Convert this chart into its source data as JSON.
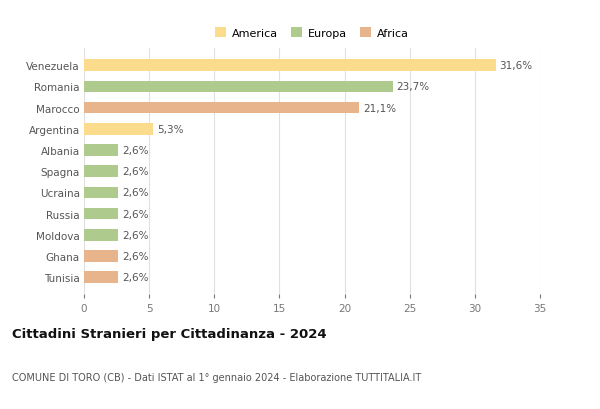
{
  "countries": [
    "Venezuela",
    "Romania",
    "Marocco",
    "Argentina",
    "Albania",
    "Spagna",
    "Ucraina",
    "Russia",
    "Moldova",
    "Ghana",
    "Tunisia"
  ],
  "values": [
    31.6,
    23.7,
    21.1,
    5.3,
    2.6,
    2.6,
    2.6,
    2.6,
    2.6,
    2.6,
    2.6
  ],
  "labels": [
    "31,6%",
    "23,7%",
    "21,1%",
    "5,3%",
    "2,6%",
    "2,6%",
    "2,6%",
    "2,6%",
    "2,6%",
    "2,6%",
    "2,6%"
  ],
  "colors": [
    "#FADC8C",
    "#AECA8C",
    "#E8B48C",
    "#FADC8C",
    "#AECA8C",
    "#AECA8C",
    "#AECA8C",
    "#AECA8C",
    "#AECA8C",
    "#E8B48C",
    "#E8B48C"
  ],
  "legend": [
    {
      "label": "America",
      "color": "#FADC8C"
    },
    {
      "label": "Europa",
      "color": "#AECA8C"
    },
    {
      "label": "Africa",
      "color": "#E8B48C"
    }
  ],
  "xlim": [
    0,
    35
  ],
  "xticks": [
    0,
    5,
    10,
    15,
    20,
    25,
    30,
    35
  ],
  "title": "Cittadini Stranieri per Cittadinanza - 2024",
  "subtitle": "COMUNE DI TORO (CB) - Dati ISTAT al 1° gennaio 2024 - Elaborazione TUTTITALIA.IT",
  "bg_color": "#ffffff",
  "grid_color": "#e0e0e0",
  "bar_height": 0.55,
  "label_fontsize": 7.5,
  "ytick_fontsize": 7.5,
  "xtick_fontsize": 7.5,
  "title_fontsize": 9.5,
  "subtitle_fontsize": 7.0,
  "legend_fontsize": 8.0
}
